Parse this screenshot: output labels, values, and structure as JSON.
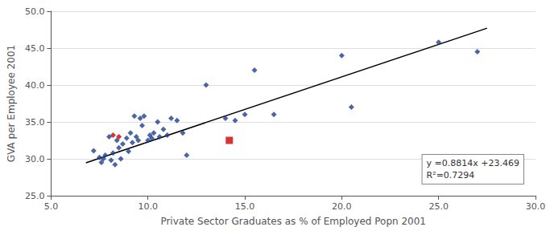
{
  "chart_data": {
    "type": "scatter",
    "xlabel": "Private Sector Graduates as % of Employed Popn 2001",
    "ylabel": "GVA per Employee 2001",
    "xlim": [
      5.0,
      30.0
    ],
    "ylim": [
      25.0,
      50.0
    ],
    "xticks": [
      {
        "value": 5,
        "label": "5.0"
      },
      {
        "value": 10,
        "label": "10.0"
      },
      {
        "value": 15,
        "label": "15.0"
      },
      {
        "value": 20,
        "label": "20.0"
      },
      {
        "value": 25,
        "label": "25.0"
      },
      {
        "value": 30,
        "label": "30.0"
      }
    ],
    "yticks": [
      {
        "value": 25,
        "label": "25.0"
      },
      {
        "value": 30,
        "label": "30.0"
      },
      {
        "value": 35,
        "label": "35.0"
      },
      {
        "value": 40,
        "label": "40.0"
      },
      {
        "value": 45,
        "label": "45.0"
      },
      {
        "value": 50,
        "label": "50.0"
      }
    ],
    "grid": true,
    "annotations": [
      "y =0.8814x +23.469",
      "R²=0.7294"
    ],
    "series": [
      {
        "type": "line",
        "color": "#000000",
        "line_style": "solid",
        "x": [
          6.8,
          27.5
        ],
        "values": [
          29.46252,
          47.7075
        ]
      },
      {
        "type": "scatter",
        "marker": "diamond",
        "color": "#1F3F8C",
        "x": [
          7.2,
          7.5,
          7.6,
          7.7,
          7.8,
          8.0,
          8.1,
          8.2,
          8.3,
          8.4,
          8.5,
          8.6,
          8.7,
          8.9,
          9.0,
          9.1,
          9.2,
          9.3,
          9.4,
          9.5,
          9.6,
          9.7,
          9.8,
          10.0,
          10.1,
          10.2,
          10.3,
          10.5,
          10.6,
          10.8,
          11.0,
          11.2,
          11.5,
          11.8,
          12.0,
          13.0,
          14.0,
          14.5,
          15.0,
          15.5,
          16.5,
          20.0,
          20.5,
          25.0,
          27.0
        ],
        "values": [
          31.1,
          30.2,
          29.5,
          30.0,
          30.5,
          33.0,
          29.8,
          30.8,
          29.2,
          32.5,
          31.5,
          30.0,
          32.0,
          32.8,
          31.0,
          33.5,
          32.2,
          35.8,
          33.0,
          32.5,
          35.5,
          34.5,
          35.8,
          32.5,
          33.2,
          32.8,
          33.5,
          35.0,
          33.0,
          34.0,
          33.2,
          35.5,
          35.2,
          33.5,
          30.5,
          40.0,
          35.5,
          35.2,
          36.0,
          42.0,
          36.0,
          44.0,
          37.0,
          45.8,
          44.5
        ]
      },
      {
        "type": "scatter",
        "marker": "diamond",
        "color": "#CC0000",
        "x": [
          8.2,
          8.5
        ],
        "values": [
          33.2,
          33.0
        ]
      },
      {
        "type": "scatter",
        "marker": "square",
        "color": "#CC0000",
        "x": [
          14.2
        ],
        "values": [
          32.5
        ]
      }
    ]
  }
}
